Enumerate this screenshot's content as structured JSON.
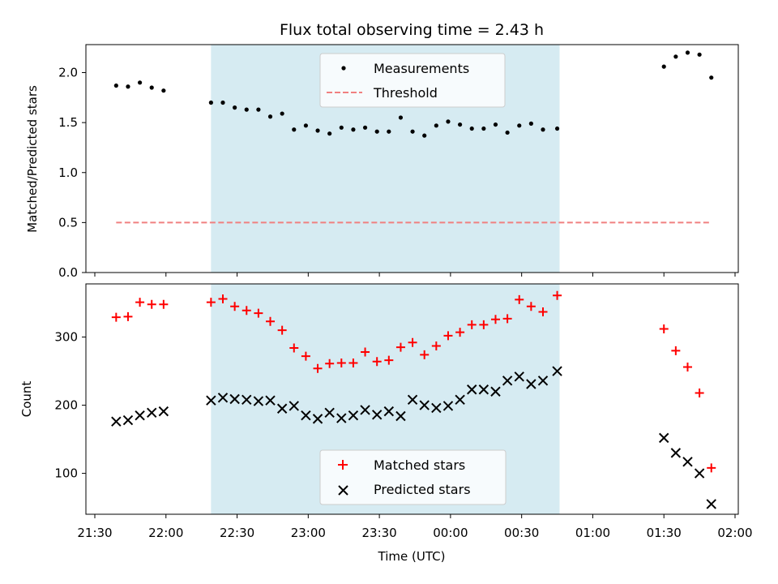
{
  "chart_data": {
    "title": "Flux total observing time = 2.43 h",
    "xlabel": "Time (UTC)",
    "x_ticks": [
      "21:30",
      "22:00",
      "22:30",
      "23:00",
      "23:30",
      "00:00",
      "00:30",
      "01:00",
      "01:30",
      "02:00"
    ],
    "shaded_span": {
      "start": "22:19",
      "end": "00:46",
      "color": "#add8e6"
    },
    "panels": [
      {
        "type": "scatter",
        "ylabel": "Matched/Predicted stars",
        "ylim": [
          0,
          2.28
        ],
        "y_ticks": [
          "0.0",
          "0.5",
          "1.0",
          "1.5",
          "2.0"
        ],
        "legend": {
          "placement": "top-center",
          "entries": [
            "Measurements",
            "Threshold"
          ]
        },
        "series": [
          {
            "name": "Measurements",
            "marker": "dot",
            "color": "#000000",
            "x": [
              "21:39",
              "21:44",
              "21:49",
              "21:54",
              "21:59",
              "22:19",
              "22:24",
              "22:29",
              "22:34",
              "22:39",
              "22:44",
              "22:49",
              "22:54",
              "22:59",
              "23:04",
              "23:09",
              "23:14",
              "23:19",
              "23:24",
              "23:29",
              "23:34",
              "23:39",
              "23:44",
              "23:49",
              "23:54",
              "23:59",
              "00:04",
              "00:09",
              "00:14",
              "00:19",
              "00:24",
              "00:29",
              "00:34",
              "00:39",
              "00:45",
              "01:30",
              "01:35",
              "01:40",
              "01:45",
              "01:50"
            ],
            "y": [
              1.87,
              1.86,
              1.9,
              1.85,
              1.82,
              1.7,
              1.7,
              1.65,
              1.63,
              1.63,
              1.56,
              1.59,
              1.43,
              1.47,
              1.42,
              1.39,
              1.45,
              1.43,
              1.45,
              1.41,
              1.41,
              1.55,
              1.41,
              1.37,
              1.47,
              1.51,
              1.48,
              1.44,
              1.44,
              1.48,
              1.4,
              1.47,
              1.49,
              1.43,
              1.44,
              2.06,
              2.16,
              2.2,
              2.18,
              1.95
            ]
          },
          {
            "name": "Threshold",
            "style": "dashed",
            "color": "#f08080",
            "x": [
              "21:39",
              "01:50"
            ],
            "y": [
              0.5,
              0.5
            ]
          }
        ]
      },
      {
        "type": "scatter",
        "ylabel": "Count",
        "ylim": [
          40,
          378
        ],
        "y_ticks": [
          "100",
          "200",
          "300"
        ],
        "legend": {
          "placement": "bottom-center",
          "entries": [
            "Matched stars",
            "Predicted stars"
          ]
        },
        "series": [
          {
            "name": "Matched stars",
            "marker": "plus",
            "color": "#ff0000",
            "x": [
              "21:39",
              "21:44",
              "21:49",
              "21:54",
              "21:59",
              "22:19",
              "22:24",
              "22:29",
              "22:34",
              "22:39",
              "22:44",
              "22:49",
              "22:54",
              "22:59",
              "23:04",
              "23:09",
              "23:14",
              "23:19",
              "23:24",
              "23:29",
              "23:34",
              "23:39",
              "23:44",
              "23:49",
              "23:54",
              "23:59",
              "00:04",
              "00:09",
              "00:14",
              "00:19",
              "00:24",
              "00:29",
              "00:34",
              "00:39",
              "00:45",
              "01:30",
              "01:35",
              "01:40",
              "01:45",
              "01:50"
            ],
            "y": [
              329,
              330,
              351,
              348,
              348,
              351,
              356,
              345,
              339,
              335,
              323,
              310,
              284,
              272,
              254,
              261,
              262,
              262,
              278,
              264,
              266,
              285,
              292,
              274,
              287,
              302,
              307,
              318,
              318,
              326,
              327,
              355,
              345,
              337,
              361,
              312,
              280,
              256,
              218,
              108
            ]
          },
          {
            "name": "Predicted stars",
            "marker": "x",
            "color": "#000000",
            "x": [
              "21:39",
              "21:44",
              "21:49",
              "21:54",
              "21:59",
              "22:19",
              "22:24",
              "22:29",
              "22:34",
              "22:39",
              "22:44",
              "22:49",
              "22:54",
              "22:59",
              "23:04",
              "23:09",
              "23:14",
              "23:19",
              "23:24",
              "23:29",
              "23:34",
              "23:39",
              "23:44",
              "23:49",
              "23:54",
              "23:59",
              "00:04",
              "00:09",
              "00:14",
              "00:19",
              "00:24",
              "00:29",
              "00:34",
              "00:39",
              "00:45",
              "01:30",
              "01:35",
              "01:40",
              "01:45",
              "01:50"
            ],
            "y": [
              176,
              178,
              185,
              189,
              191,
              207,
              211,
              209,
              208,
              206,
              207,
              195,
              199,
              185,
              180,
              189,
              181,
              185,
              193,
              186,
              191,
              184,
              208,
              200,
              196,
              199,
              208,
              223,
              223,
              220,
              236,
              242,
              231,
              236,
              250,
              152,
              130,
              117,
              100,
              55
            ]
          }
        ]
      }
    ]
  }
}
